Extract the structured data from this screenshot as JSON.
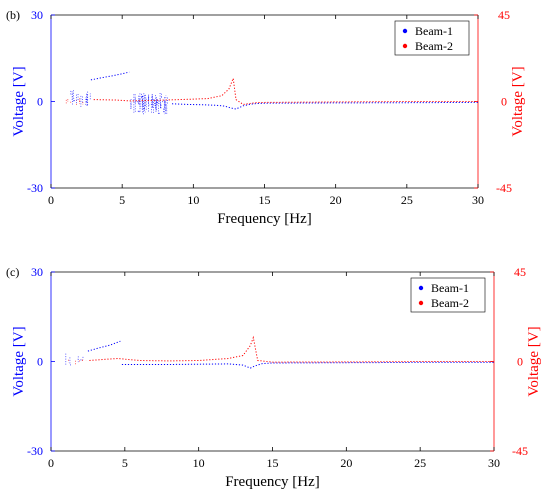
{
  "chart_data": [
    {
      "panel": "(b)",
      "type": "scatter",
      "xlabel": "Frequency [Hz]",
      "ylabel_left": "Voltage [V]",
      "ylabel_right": "Voltage [V]",
      "xlim": [
        0,
        30
      ],
      "ylim_left": [
        -30,
        30
      ],
      "ylim_right": [
        -45,
        45
      ],
      "xticks": [
        0,
        5,
        10,
        15,
        20,
        25,
        30
      ],
      "yticks_left": [
        -30,
        0,
        30
      ],
      "yticks_right": [
        -45,
        0,
        45
      ],
      "legend_placement": "top-right",
      "series": [
        {
          "name": "Beam-1",
          "color": "#0000ff",
          "axis": "left",
          "regions": [
            {
              "x": [
                1.1,
                2.8
              ],
              "ymin": -2.5,
              "ymax": 4.5,
              "density": 18
            },
            {
              "x": [
                5.6,
                8.2
              ],
              "ymin": -4.5,
              "ymax": 3.0,
              "density": 70
            }
          ],
          "curves": [
            {
              "x": [
                2.8,
                3.5,
                4.2,
                4.9,
                5.5
              ],
              "y": [
                7.5,
                8.2,
                8.8,
                9.5,
                10.2
              ]
            },
            {
              "x": [
                8.5,
                9.5,
                10.5,
                11.5,
                12.2,
                12.6,
                13.0,
                13.5,
                14.2,
                15,
                20,
                25,
                30
              ],
              "y": [
                -0.8,
                -1.0,
                -1.1,
                -1.3,
                -1.6,
                -2.2,
                -2.6,
                -1.5,
                -0.8,
                -0.6,
                -0.5,
                -0.4,
                -0.3
              ]
            }
          ]
        },
        {
          "name": "Beam-2",
          "color": "#ff0000",
          "axis": "right",
          "regions": [
            {
              "x": [
                1.0,
                2.6
              ],
              "ymin": -2.0,
              "ymax": 2.0,
              "density": 10
            }
          ],
          "curves": [
            {
              "x": [
                3.0,
                4.5,
                5.5,
                7.0,
                9.0,
                11.0,
                12.0,
                12.5,
                12.8,
                13.0,
                13.5,
                14.5,
                20,
                25,
                30
              ],
              "y": [
                1.0,
                0.8,
                0.3,
                0.5,
                1.0,
                1.5,
                3.0,
                6.5,
                12.0,
                1.0,
                -1.5,
                -0.5,
                -0.2,
                0.0,
                0.0
              ]
            }
          ]
        }
      ]
    },
    {
      "panel": "(c)",
      "type": "scatter",
      "xlabel": "Frequency [Hz]",
      "ylabel_left": "Voltage [V]",
      "ylabel_right": "Voltage [V]",
      "xlim": [
        0,
        30
      ],
      "ylim_left": [
        -30,
        30
      ],
      "ylim_right": [
        -45,
        45
      ],
      "xticks": [
        0,
        5,
        10,
        15,
        20,
        25,
        30
      ],
      "yticks_left": [
        -30,
        0,
        30
      ],
      "yticks_right": [
        -45,
        0,
        45
      ],
      "legend_placement": "top-right",
      "series": [
        {
          "name": "Beam-1",
          "color": "#0000ff",
          "axis": "left",
          "regions": [
            {
              "x": [
                1.0,
                2.2
              ],
              "ymin": -1.5,
              "ymax": 3.0,
              "density": 8
            }
          ],
          "curves": [
            {
              "x": [
                2.5,
                3.2,
                4.0,
                4.7
              ],
              "y": [
                3.5,
                4.5,
                5.5,
                6.8
              ]
            },
            {
              "x": [
                4.8,
                6,
                8,
                10,
                12,
                13.0,
                13.5,
                13.8,
                14.3,
                15,
                20,
                25,
                30
              ],
              "y": [
                -1.0,
                -1.0,
                -1.0,
                -0.9,
                -0.8,
                -1.2,
                -2.2,
                -1.5,
                -0.7,
                -0.5,
                -0.4,
                -0.3,
                -0.3
              ]
            }
          ]
        },
        {
          "name": "Beam-2",
          "color": "#ff0000",
          "axis": "right",
          "regions": [
            {
              "x": [
                1.0,
                2.4
              ],
              "ymin": -1.5,
              "ymax": 1.5,
              "density": 6
            }
          ],
          "curves": [
            {
              "x": [
                2.6,
                3.5,
                4.5,
                6,
                8,
                10,
                12,
                13.0,
                13.5,
                13.7,
                14.0,
                15,
                20,
                25,
                30
              ],
              "y": [
                0.5,
                1.0,
                1.5,
                0.5,
                0.3,
                0.5,
                1.5,
                3.0,
                8.0,
                12.0,
                0.5,
                -0.3,
                -0.2,
                0.0,
                0.0
              ]
            }
          ]
        }
      ]
    }
  ]
}
